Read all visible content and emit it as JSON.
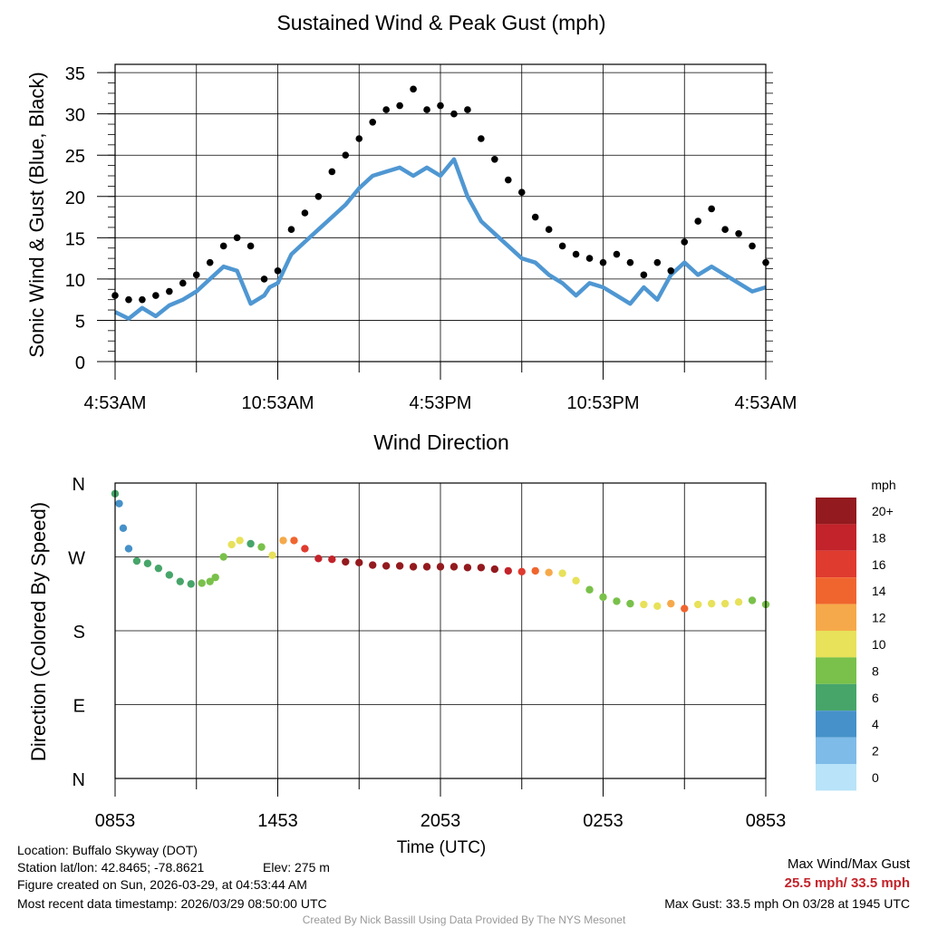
{
  "chart_data": [
    {
      "type": "scatter",
      "title": "Sustained Wind & Peak Gust (mph)",
      "xlabel": "",
      "ylabel": "Sonic Wind & Gust (Blue, Black)",
      "xlim": [
        0,
        24
      ],
      "ylim": [
        0,
        36
      ],
      "y_ticks": [
        0,
        5,
        10,
        15,
        20,
        25,
        30,
        35
      ],
      "x_ticks": [
        0,
        6,
        12,
        18,
        24
      ],
      "x_tick_labels": [
        "4:53AM",
        "10:53AM",
        "4:53PM",
        "10:53PM",
        "4:53AM"
      ],
      "series": [
        {
          "name": "Sustained Wind",
          "color": "#4f97d2",
          "style": "line",
          "x": [
            0.0,
            0.5,
            1.0,
            1.5,
            2.0,
            2.5,
            3.0,
            3.5,
            4.0,
            4.5,
            5.0,
            5.5,
            5.7,
            6.0,
            6.5,
            7.0,
            7.5,
            8.0,
            8.5,
            9.0,
            9.5,
            10.0,
            10.5,
            11.0,
            11.5,
            12.0,
            12.5,
            13.0,
            13.5,
            14.0,
            14.5,
            15.0,
            15.5,
            16.0,
            16.5,
            17.0,
            17.5,
            18.0,
            18.5,
            19.0,
            19.5,
            20.0,
            20.5,
            21.0,
            21.5,
            22.0,
            22.5,
            23.0,
            23.5,
            24.0
          ],
          "values": [
            6.0,
            5.2,
            6.5,
            5.5,
            6.8,
            7.5,
            8.5,
            10.0,
            11.5,
            11.0,
            7.0,
            8.0,
            9.0,
            9.5,
            13.0,
            14.5,
            16.0,
            17.5,
            19.0,
            21.0,
            22.5,
            23.0,
            23.5,
            22.5,
            23.5,
            22.5,
            24.5,
            20.0,
            17.0,
            15.5,
            14.0,
            12.5,
            12.0,
            10.5,
            9.5,
            8.0,
            9.5,
            9.0,
            8.0,
            7.0,
            9.0,
            7.5,
            10.5,
            12.0,
            10.5,
            11.5,
            10.5,
            9.5,
            8.5,
            9.0
          ]
        },
        {
          "name": "Peak Gust",
          "color": "#000000",
          "style": "dots",
          "x": [
            0.0,
            0.5,
            1.0,
            1.5,
            2.0,
            2.5,
            3.0,
            3.5,
            4.0,
            4.5,
            5.0,
            5.5,
            6.0,
            6.5,
            7.0,
            7.5,
            8.0,
            8.5,
            9.0,
            9.5,
            10.0,
            10.5,
            11.0,
            11.5,
            12.0,
            12.5,
            13.0,
            13.5,
            14.0,
            14.5,
            15.0,
            15.5,
            16.0,
            16.5,
            17.0,
            17.5,
            18.0,
            18.5,
            19.0,
            19.5,
            20.0,
            20.5,
            21.0,
            21.5,
            22.0,
            22.5,
            23.0,
            23.5,
            24.0
          ],
          "values": [
            8.0,
            7.5,
            7.5,
            8.0,
            8.5,
            9.5,
            10.5,
            12.0,
            14.0,
            15.0,
            14.0,
            10.0,
            11.0,
            16.0,
            18.0,
            20.0,
            23.0,
            25.0,
            27.0,
            29.0,
            30.5,
            31.0,
            33.0,
            30.5,
            31.0,
            30.0,
            30.5,
            27.0,
            24.5,
            22.0,
            20.5,
            17.5,
            16.0,
            14.0,
            13.0,
            12.5,
            12.0,
            13.0,
            12.0,
            10.5,
            12.0,
            11.0,
            14.5,
            17.0,
            18.5,
            16.0,
            15.5,
            14.0,
            12.0
          ]
        }
      ]
    },
    {
      "type": "scatter",
      "title": "Wind Direction",
      "xlabel": "Time (UTC)",
      "ylabel": "Direction (Colored By Speed)",
      "xlim": [
        0,
        24
      ],
      "ylim": [
        0,
        360
      ],
      "y_ticks": [
        0,
        90,
        180,
        270,
        360
      ],
      "y_tick_labels": [
        "N",
        "E",
        "S",
        "W",
        "N"
      ],
      "x_ticks": [
        0,
        6,
        12,
        18,
        24
      ],
      "x_tick_labels": [
        "0853",
        "1453",
        "2053",
        "0253",
        "0853"
      ],
      "colorbar": {
        "title": "mph",
        "levels": [
          "20+",
          "18",
          "16",
          "14",
          "12",
          "10",
          "8",
          "6",
          "4",
          "2",
          "0"
        ],
        "colors": [
          "#931a1e",
          "#c3232a",
          "#df3b2e",
          "#f0652e",
          "#f6a94a",
          "#e8e15a",
          "#79c14a",
          "#47a56a",
          "#4691c9",
          "#7ebbe8",
          "#b8e3f8"
        ]
      },
      "x": [
        0.0,
        0.15,
        0.3,
        0.5,
        0.8,
        1.2,
        1.6,
        2.0,
        2.4,
        2.8,
        3.2,
        3.5,
        3.7,
        4.0,
        4.3,
        4.6,
        5.0,
        5.4,
        5.8,
        6.2,
        6.6,
        7.0,
        7.5,
        8.0,
        8.5,
        9.0,
        9.5,
        10.0,
        10.5,
        11.0,
        11.5,
        12.0,
        12.5,
        13.0,
        13.5,
        14.0,
        14.5,
        15.0,
        15.5,
        16.0,
        16.5,
        17.0,
        17.5,
        18.0,
        18.5,
        19.0,
        19.5,
        20.0,
        20.5,
        21.0,
        21.5,
        22.0,
        22.5,
        23.0,
        23.5,
        24.0
      ],
      "direction": [
        347,
        335,
        305,
        280,
        265,
        262,
        256,
        248,
        240,
        237,
        238,
        240,
        245,
        270,
        285,
        290,
        286,
        282,
        272,
        290,
        290,
        280,
        268,
        267,
        264,
        263,
        260,
        259,
        259,
        258,
        258,
        258,
        258,
        257,
        257,
        255,
        253,
        252,
        253,
        251,
        250,
        241,
        230,
        221,
        216,
        213,
        212,
        210,
        213,
        207,
        212,
        213,
        213,
        215,
        217,
        212
      ],
      "speed": [
        6,
        4,
        4,
        4,
        6,
        6,
        6,
        6,
        6,
        6,
        8,
        8,
        8,
        8,
        10,
        10,
        6,
        8,
        10,
        12,
        14,
        16,
        18,
        18,
        20,
        20,
        20,
        20,
        20,
        20,
        20,
        20,
        20,
        20,
        20,
        20,
        18,
        16,
        14,
        12,
        10,
        10,
        8,
        8,
        8,
        8,
        10,
        10,
        12,
        14,
        10,
        10,
        10,
        10,
        8,
        8
      ]
    }
  ],
  "footer": {
    "location": "Location: Buffalo Skyway (DOT)",
    "latlon": "Station lat/lon: 42.8465; -78.8621",
    "elev": "Elev: 275 m",
    "created": "Figure created on Sun, 2026-03-29, at 04:53:44 AM",
    "recent": "Most recent data timestamp: 2026/03/29 08:50:00 UTC",
    "max_label": "Max Wind/Max Gust",
    "max_value": "25.5 mph/ 33.5 mph",
    "max_gust": "Max Gust: 33.5 mph On 03/28 at 1945 UTC",
    "credit": "Created By Nick Bassill Using Data Provided By The NYS Mesonet",
    "max_value_color": "#c3232a"
  }
}
